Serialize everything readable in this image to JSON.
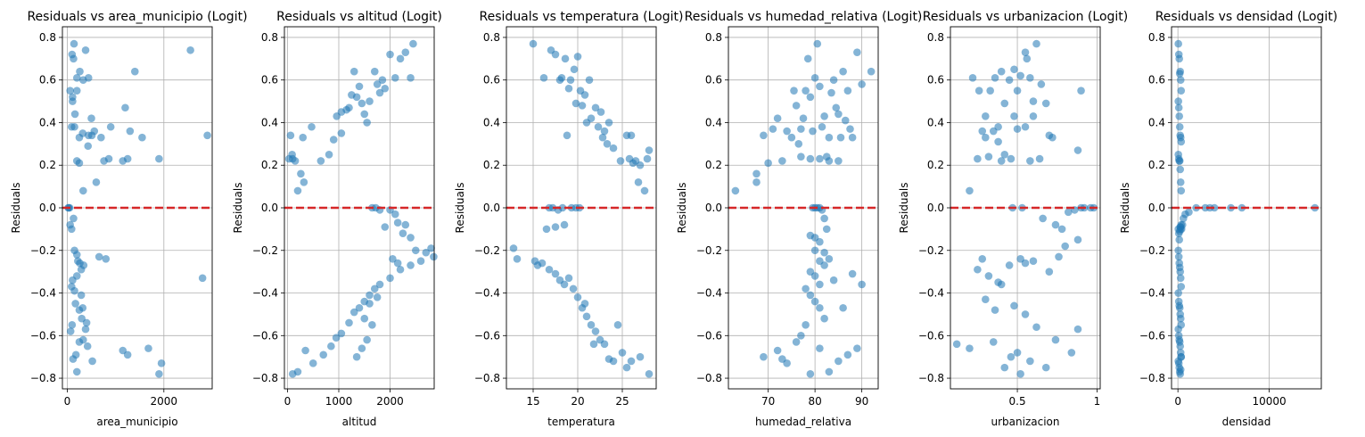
{
  "chart_data": [
    {
      "type": "scatter",
      "title": "Residuals vs area_municipio (Logit)",
      "xlabel": "area_municipio",
      "ylabel": "Residuals",
      "xlim": [
        -100,
        3000
      ],
      "ylim": [
        -0.85,
        0.85
      ],
      "xticks": [
        0,
        2000
      ],
      "yticks": [
        -0.8,
        -0.6,
        -0.4,
        -0.2,
        0.0,
        0.2,
        0.4,
        0.6,
        0.8
      ],
      "grid": true,
      "reference_line": {
        "y": 0,
        "color": "#d62728",
        "style": "dashed"
      },
      "point_color": "#1f77b4",
      "x": [
        60,
        100,
        140,
        130,
        200,
        110,
        260,
        380,
        200,
        330,
        440,
        900,
        1400,
        2550,
        2900,
        1200,
        1250,
        1550,
        1900,
        1150,
        1300,
        600,
        760,
        860,
        500,
        440,
        320,
        250,
        150,
        90,
        160,
        110,
        200,
        250,
        330,
        430,
        510,
        560,
        700,
        30,
        50,
        20,
        130,
        90,
        60,
        150,
        200,
        220,
        260,
        340,
        290,
        200,
        110,
        90,
        150,
        170,
        250,
        320,
        300,
        400,
        660,
        800,
        1150,
        1250,
        1680,
        1950,
        1900,
        2800,
        100,
        70,
        250,
        330,
        420,
        520,
        120,
        200,
        180,
        290,
        380
      ],
      "y": [
        0.55,
        0.72,
        0.77,
        0.7,
        0.61,
        0.5,
        0.64,
        0.74,
        0.55,
        0.6,
        0.61,
        0.38,
        0.64,
        0.74,
        0.34,
        0.47,
        0.23,
        0.33,
        0.23,
        0.22,
        0.36,
        0.12,
        0.22,
        0.23,
        0.42,
        0.34,
        0.35,
        0.33,
        0.38,
        0.38,
        0.44,
        0.52,
        0.22,
        0.21,
        0.08,
        0.29,
        0.34,
        0.36,
        0.33,
        0.0,
        0.0,
        0.0,
        -0.05,
        -0.1,
        -0.08,
        -0.2,
        -0.22,
        -0.25,
        -0.26,
        -0.27,
        -0.29,
        -0.32,
        -0.34,
        -0.37,
        -0.39,
        -0.45,
        -0.48,
        -0.47,
        -0.52,
        -0.54,
        -0.23,
        -0.24,
        -0.67,
        -0.69,
        -0.66,
        -0.73,
        -0.78,
        -0.33,
        -0.55,
        -0.58,
        -0.63,
        -0.62,
        -0.65,
        -0.72,
        -0.71,
        -0.77,
        -0.69,
        -0.41,
        -0.57
      ]
    },
    {
      "type": "scatter",
      "title": "Residuals vs altitud (Logit)",
      "xlabel": "altitud",
      "ylabel": "Residuals",
      "xlim": [
        -60,
        2860
      ],
      "ylim": [
        -0.85,
        0.85
      ],
      "xticks": [
        0,
        1000,
        2000
      ],
      "yticks": [
        -0.8,
        -0.6,
        -0.4,
        -0.2,
        0.0,
        0.2,
        0.4,
        0.6,
        0.8
      ],
      "grid": true,
      "reference_line": {
        "y": 0,
        "color": "#d62728",
        "style": "dashed"
      },
      "point_color": "#1f77b4",
      "x": [
        30,
        60,
        100,
        150,
        90,
        200,
        260,
        320,
        300,
        470,
        650,
        810,
        900,
        960,
        1050,
        1200,
        1300,
        1350,
        1400,
        1450,
        1500,
        1550,
        1600,
        1700,
        1750,
        1800,
        1850,
        1900,
        2000,
        2100,
        2200,
        2300,
        2400,
        2450,
        1250,
        1150,
        1050,
        1650,
        1720,
        1800,
        1900,
        2000,
        2100,
        2150,
        2250,
        2300,
        2400,
        2500,
        2800,
        2850,
        2700,
        2600,
        2400,
        2200,
        2000,
        1800,
        1600,
        1500,
        1400,
        1300,
        1200,
        1050,
        950,
        850,
        700,
        500,
        350,
        200,
        100,
        1700,
        1750,
        1600,
        1500,
        1650,
        1550,
        1450,
        1350,
        2050,
        2150
      ],
      "y": [
        0.23,
        0.34,
        0.23,
        0.22,
        0.25,
        0.08,
        0.16,
        0.12,
        0.33,
        0.38,
        0.22,
        0.25,
        0.32,
        0.43,
        0.35,
        0.47,
        0.64,
        0.52,
        0.57,
        0.49,
        0.44,
        0.4,
        0.5,
        0.64,
        0.58,
        0.54,
        0.6,
        0.56,
        0.72,
        0.61,
        0.7,
        0.73,
        0.61,
        0.77,
        0.53,
        0.46,
        0.45,
        0.0,
        0.0,
        -0.01,
        -0.09,
        -0.01,
        -0.03,
        -0.07,
        -0.12,
        -0.08,
        -0.14,
        -0.2,
        -0.19,
        -0.23,
        -0.21,
        -0.25,
        -0.27,
        -0.29,
        -0.33,
        -0.36,
        -0.41,
        -0.44,
        -0.47,
        -0.49,
        -0.54,
        -0.59,
        -0.61,
        -0.65,
        -0.69,
        -0.73,
        -0.67,
        -0.77,
        -0.78,
        -0.38,
        -0.42,
        -0.45,
        -0.52,
        -0.55,
        -0.62,
        -0.66,
        -0.7,
        -0.24,
        -0.26
      ]
    },
    {
      "type": "scatter",
      "title": "Residuals vs temperatura (Logit)",
      "xlabel": "temperatura",
      "ylabel": "Residuals",
      "xlim": [
        12,
        28.8
      ],
      "ylim": [
        -0.85,
        0.85
      ],
      "xticks": [
        15,
        20,
        25
      ],
      "yticks": [
        -0.8,
        -0.6,
        -0.4,
        -0.2,
        0.0,
        0.2,
        0.4,
        0.6,
        0.8
      ],
      "grid": true,
      "reference_line": {
        "y": 0,
        "color": "#d62728",
        "style": "dashed"
      },
      "point_color": "#1f77b4",
      "x": [
        15.0,
        16.2,
        17.0,
        17.5,
        18.2,
        18.6,
        19.2,
        19.6,
        20.0,
        20.3,
        20.8,
        21.3,
        22.0,
        22.6,
        23.0,
        23.5,
        24.0,
        24.8,
        25.5,
        26.0,
        26.5,
        27.0,
        27.8,
        28.0,
        19.0,
        19.8,
        20.5,
        21.0,
        21.5,
        22.3,
        22.8,
        23.3,
        25.8,
        26.2,
        26.8,
        27.5,
        18.0,
        18.8,
        16.8,
        17.2,
        17.8,
        18.3,
        19.3,
        19.8,
        20.2,
        17.5,
        18.5,
        16.5,
        12.8,
        13.2,
        15.2,
        15.5,
        16.0,
        16.8,
        17.5,
        18.0,
        18.5,
        19.0,
        19.5,
        20.0,
        20.5,
        21.0,
        21.5,
        22.0,
        22.5,
        23.0,
        24.0,
        25.0,
        25.5,
        26.0,
        27.0,
        28.0,
        23.5,
        24.5,
        21.8,
        20.8
      ],
      "y": [
        0.77,
        0.61,
        0.74,
        0.72,
        0.61,
        0.7,
        0.6,
        0.65,
        0.71,
        0.55,
        0.53,
        0.6,
        0.47,
        0.45,
        0.36,
        0.4,
        0.28,
        0.22,
        0.34,
        0.34,
        0.22,
        0.2,
        0.23,
        0.27,
        0.56,
        0.49,
        0.48,
        0.4,
        0.42,
        0.38,
        0.33,
        0.3,
        0.23,
        0.21,
        0.12,
        0.08,
        0.6,
        0.34,
        0.0,
        0.0,
        -0.01,
        0.0,
        0.0,
        0.0,
        0.0,
        -0.09,
        -0.08,
        -0.1,
        -0.19,
        -0.24,
        -0.25,
        -0.27,
        -0.26,
        -0.29,
        -0.31,
        -0.34,
        -0.36,
        -0.33,
        -0.38,
        -0.42,
        -0.47,
        -0.51,
        -0.55,
        -0.58,
        -0.62,
        -0.64,
        -0.72,
        -0.68,
        -0.75,
        -0.72,
        -0.7,
        -0.78,
        -0.71,
        -0.55,
        -0.64,
        -0.45
      ]
    },
    {
      "type": "scatter",
      "title": "Residuals vs humedad_relativa (Logit)",
      "xlabel": "humedad_relativa",
      "ylabel": "Residuals",
      "xlim": [
        61.5,
        93.5
      ],
      "ylim": [
        -0.85,
        0.85
      ],
      "xticks": [
        70,
        80,
        90
      ],
      "yticks": [
        -0.8,
        -0.6,
        -0.4,
        -0.2,
        0.0,
        0.2,
        0.4,
        0.6,
        0.8
      ],
      "grid": true,
      "reference_line": {
        "y": 0,
        "color": "#d62728",
        "style": "dashed"
      },
      "point_color": "#1f77b4",
      "x": [
        63,
        67.5,
        67.5,
        69,
        70,
        71,
        72,
        73,
        74,
        75,
        75.5,
        76,
        76.5,
        77,
        77.5,
        78,
        78.5,
        79,
        79.5,
        80,
        80.5,
        81,
        81.5,
        82,
        82.5,
        83,
        83.5,
        84,
        84.5,
        85,
        85.5,
        86,
        86.5,
        87,
        87.5,
        88,
        89,
        90,
        92,
        81,
        83,
        85,
        79,
        77,
        79.5,
        80,
        80.5,
        81,
        81.5,
        82,
        82.5,
        79,
        80,
        81,
        82,
        80,
        81,
        82,
        83,
        79,
        80,
        81,
        78,
        79,
        80,
        81,
        82,
        78,
        77,
        76,
        74,
        73,
        69,
        72,
        79,
        81,
        83,
        85,
        87,
        89,
        90,
        84,
        86,
        88
      ],
      "y": [
        0.08,
        0.16,
        0.12,
        0.34,
        0.21,
        0.37,
        0.42,
        0.22,
        0.36,
        0.33,
        0.55,
        0.48,
        0.3,
        0.37,
        0.42,
        0.55,
        0.7,
        0.52,
        0.36,
        0.61,
        0.77,
        0.57,
        0.38,
        0.43,
        0.24,
        0.33,
        0.54,
        0.6,
        0.47,
        0.44,
        0.33,
        0.64,
        0.41,
        0.55,
        0.37,
        0.33,
        0.73,
        0.58,
        0.64,
        0.23,
        0.22,
        0.22,
        0.23,
        0.24,
        0.0,
        0.0,
        0.0,
        0.0,
        -0.01,
        -0.05,
        -0.1,
        -0.13,
        -0.14,
        -0.16,
        -0.21,
        -0.2,
        -0.25,
        -0.27,
        -0.24,
        -0.3,
        -0.32,
        -0.36,
        -0.38,
        -0.41,
        -0.44,
        -0.47,
        -0.52,
        -0.55,
        -0.6,
        -0.63,
        -0.73,
        -0.71,
        -0.7,
        -0.67,
        -0.78,
        -0.66,
        -0.77,
        -0.72,
        -0.69,
        -0.66,
        -0.36,
        -0.34,
        -0.47,
        -0.31
      ]
    },
    {
      "type": "scatter",
      "title": "Residuals vs urbanizacion (Logit)",
      "xlabel": "urbanizacion",
      "ylabel": "Residuals",
      "xlim": [
        0.08,
        1.02
      ],
      "ylim": [
        -0.85,
        0.85
      ],
      "xticks": [
        0.5,
        1.0
      ],
      "yticks": [
        -0.8,
        -0.6,
        -0.4,
        -0.2,
        0.0,
        0.2,
        0.4,
        0.6,
        0.8
      ],
      "grid": true,
      "reference_line": {
        "y": 0,
        "color": "#d62728",
        "style": "dashed"
      },
      "point_color": "#1f77b4",
      "x": [
        0.22,
        0.26,
        0.3,
        0.33,
        0.36,
        0.4,
        0.42,
        0.45,
        0.48,
        0.5,
        0.52,
        0.55,
        0.56,
        0.58,
        0.6,
        0.62,
        0.65,
        0.68,
        0.72,
        0.3,
        0.35,
        0.38,
        0.42,
        0.48,
        0.55,
        0.6,
        0.25,
        0.32,
        0.4,
        0.46,
        0.5,
        0.58,
        0.64,
        0.7,
        0.88,
        0.9,
        0.2,
        0.38,
        0.28,
        0.47,
        0.53,
        0.66,
        0.74,
        0.78,
        0.82,
        0.86,
        0.9,
        0.92,
        0.96,
        0.98,
        0.88,
        0.8,
        0.76,
        0.7,
        0.6,
        0.55,
        0.52,
        0.45,
        0.38,
        0.32,
        0.28,
        0.25,
        0.12,
        0.2,
        0.35,
        0.42,
        0.46,
        0.5,
        0.58,
        0.62,
        0.68,
        0.74,
        0.84,
        0.88,
        0.4,
        0.36,
        0.55,
        0.48,
        0.52,
        0.3
      ],
      "y": [
        0.61,
        0.55,
        0.43,
        0.55,
        0.61,
        0.64,
        0.49,
        0.6,
        0.65,
        0.55,
        0.62,
        0.73,
        0.7,
        0.61,
        0.5,
        0.77,
        0.58,
        0.49,
        0.33,
        0.33,
        0.36,
        0.38,
        0.25,
        0.43,
        0.38,
        0.43,
        0.23,
        0.24,
        0.22,
        0.23,
        0.37,
        0.22,
        0.23,
        0.34,
        0.27,
        0.55,
        0.08,
        0.31,
        0.36,
        0.0,
        0.0,
        -0.05,
        -0.08,
        -0.1,
        -0.02,
        -0.01,
        0.0,
        0.0,
        0.0,
        0.0,
        -0.15,
        -0.18,
        -0.23,
        -0.3,
        -0.25,
        -0.26,
        -0.24,
        -0.27,
        -0.35,
        -0.32,
        -0.24,
        -0.29,
        -0.64,
        -0.66,
        -0.63,
        -0.75,
        -0.7,
        -0.68,
        -0.72,
        -0.56,
        -0.75,
        -0.62,
        -0.68,
        -0.57,
        -0.36,
        -0.48,
        -0.5,
        -0.46,
        -0.78,
        -0.43
      ]
    },
    {
      "type": "scatter",
      "title": "Residuals vs densidad (Logit)",
      "xlabel": "densidad",
      "ylabel": "Residuals",
      "xlim": [
        -700,
        15700
      ],
      "ylim": [
        -0.85,
        0.85
      ],
      "xticks": [
        0,
        10000
      ],
      "yticks": [
        -0.8,
        -0.6,
        -0.4,
        -0.2,
        0.0,
        0.2,
        0.4,
        0.6,
        0.8
      ],
      "grid": true,
      "reference_line": {
        "y": 0,
        "color": "#d62728",
        "style": "dashed"
      },
      "point_color": "#1f77b4",
      "x": [
        50,
        100,
        150,
        200,
        250,
        300,
        350,
        50,
        100,
        150,
        200,
        250,
        300,
        350,
        50,
        100,
        150,
        200,
        250,
        300,
        350,
        50,
        100,
        150,
        200,
        250,
        300,
        350,
        50,
        100,
        150,
        200,
        250,
        300,
        350,
        50,
        100,
        150,
        200,
        250,
        300,
        350,
        50,
        100,
        150,
        200,
        250,
        300,
        350,
        50,
        100,
        150,
        200,
        250,
        300,
        350,
        300,
        400,
        500,
        600,
        800,
        1200,
        2000,
        3000,
        3500,
        4000,
        5800,
        7000,
        15000
      ],
      "y": [
        0.77,
        0.72,
        0.7,
        0.63,
        0.64,
        0.6,
        0.55,
        0.5,
        0.47,
        0.43,
        0.38,
        0.34,
        0.33,
        0.31,
        0.25,
        0.23,
        0.22,
        0.22,
        0.18,
        0.12,
        0.08,
        -0.2,
        -0.23,
        -0.26,
        -0.28,
        -0.3,
        -0.33,
        -0.37,
        -0.4,
        -0.44,
        -0.46,
        -0.47,
        -0.5,
        -0.52,
        -0.55,
        -0.57,
        -0.6,
        -0.62,
        -0.63,
        -0.65,
        -0.68,
        -0.7,
        -0.72,
        -0.73,
        -0.75,
        -0.77,
        -0.78,
        -0.76,
        -0.7,
        -0.1,
        -0.12,
        -0.15,
        -0.11,
        -0.09,
        -0.1,
        -0.08,
        -0.09,
        -0.1,
        -0.08,
        -0.05,
        -0.03,
        -0.02,
        0.0,
        0.0,
        0.0,
        0.0,
        0.0,
        0.0,
        0.0
      ]
    }
  ]
}
